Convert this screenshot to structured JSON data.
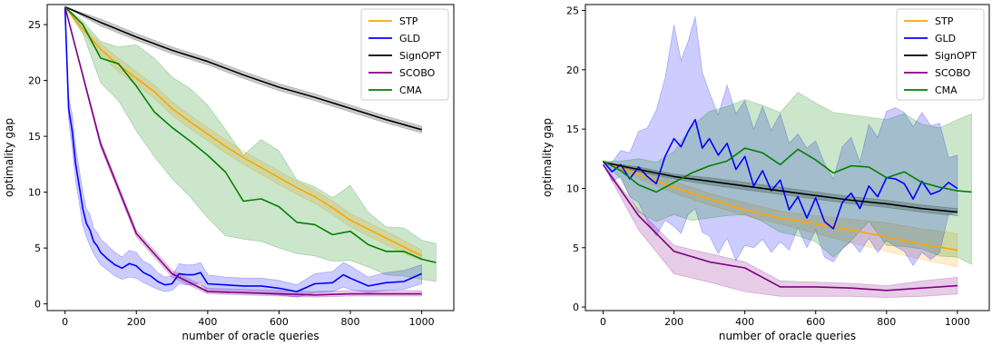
{
  "chart_data": [
    {
      "type": "line",
      "xlabel": "number of oracle queries",
      "ylabel": "optimality gap",
      "xlim": [
        -50,
        1090
      ],
      "ylim": [
        -0.6,
        26.8
      ],
      "xticks": [
        0,
        200,
        400,
        600,
        800,
        1000
      ],
      "yticks": [
        0,
        5,
        10,
        15,
        20,
        25
      ],
      "legend_position": "top-right",
      "grid": false,
      "series": [
        {
          "name": "STP",
          "color": "#ffa500",
          "x": [
            0,
            50,
            100,
            150,
            200,
            250,
            300,
            350,
            400,
            450,
            500,
            550,
            600,
            650,
            700,
            750,
            800,
            850,
            900,
            950,
            1000
          ],
          "y": [
            26.6,
            24.6,
            22.8,
            21.4,
            20.2,
            19.0,
            17.5,
            16.3,
            15.2,
            14.1,
            13.1,
            12.2,
            11.3,
            10.4,
            9.6,
            8.6,
            7.5,
            6.7,
            5.9,
            5.1,
            4.3
          ],
          "lower": [
            26.6,
            24.3,
            22.3,
            20.8,
            19.6,
            18.4,
            16.9,
            15.7,
            14.6,
            13.5,
            12.5,
            11.6,
            10.7,
            9.8,
            9.0,
            8.0,
            6.9,
            6.1,
            5.3,
            4.5,
            3.9
          ],
          "upper": [
            26.6,
            24.9,
            23.3,
            22.0,
            20.8,
            19.6,
            18.1,
            16.9,
            15.8,
            14.7,
            13.7,
            12.8,
            11.9,
            11.0,
            10.2,
            9.2,
            8.1,
            7.3,
            6.5,
            5.7,
            4.8
          ]
        },
        {
          "name": "GLD",
          "color": "#0000ff",
          "x": [
            0,
            10,
            20,
            30,
            40,
            50,
            60,
            70,
            80,
            90,
            100,
            120,
            140,
            160,
            180,
            200,
            220,
            240,
            260,
            280,
            300,
            320,
            340,
            360,
            380,
            400,
            450,
            500,
            550,
            600,
            650,
            700,
            750,
            780,
            800,
            850,
            900,
            950,
            1000
          ],
          "y": [
            26.6,
            17.5,
            15.5,
            12.5,
            10.5,
            8.5,
            7.2,
            6.6,
            5.6,
            5.2,
            4.6,
            4.0,
            3.5,
            3.2,
            3.6,
            3.4,
            2.8,
            2.5,
            2.0,
            1.7,
            1.8,
            2.7,
            2.6,
            2.6,
            2.8,
            1.8,
            1.7,
            1.6,
            1.6,
            1.4,
            1.1,
            1.8,
            1.9,
            2.6,
            2.3,
            1.6,
            1.9,
            2.0,
            2.7
          ],
          "lower": [
            26.6,
            16.5,
            14.0,
            11.0,
            9.0,
            7.0,
            6.0,
            5.2,
            4.5,
            4.0,
            3.5,
            3.0,
            2.5,
            2.2,
            2.4,
            2.3,
            1.9,
            1.6,
            1.3,
            1.1,
            1.2,
            1.8,
            1.7,
            1.7,
            1.9,
            1.1,
            1.0,
            1.0,
            0.9,
            0.8,
            0.6,
            1.0,
            1.1,
            1.5,
            1.3,
            1.0,
            1.2,
            1.3,
            1.8
          ],
          "upper": [
            26.6,
            18.5,
            17.0,
            14.0,
            12.0,
            10.0,
            8.5,
            8.0,
            6.8,
            6.4,
            5.8,
            5.2,
            4.6,
            4.2,
            4.8,
            4.6,
            3.8,
            3.5,
            2.8,
            2.4,
            2.5,
            3.6,
            3.5,
            3.5,
            3.7,
            2.6,
            2.4,
            2.3,
            2.3,
            2.1,
            1.7,
            2.7,
            2.9,
            3.7,
            3.4,
            2.4,
            2.8,
            3.0,
            3.5
          ]
        },
        {
          "name": "SignOPT",
          "color": "#000000",
          "x": [
            0,
            100,
            200,
            300,
            400,
            500,
            600,
            700,
            800,
            900,
            1000
          ],
          "y": [
            26.6,
            25.2,
            23.9,
            22.7,
            21.7,
            20.5,
            19.4,
            18.5,
            17.5,
            16.5,
            15.6
          ],
          "lower": [
            26.6,
            24.9,
            23.6,
            22.4,
            21.4,
            20.2,
            19.1,
            18.2,
            17.2,
            16.2,
            15.3
          ],
          "upper": [
            26.6,
            25.5,
            24.2,
            23.0,
            22.0,
            20.8,
            19.7,
            18.8,
            17.8,
            16.8,
            15.9
          ]
        },
        {
          "name": "SCOBO",
          "color": "#800080",
          "x": [
            0,
            100,
            200,
            300,
            400,
            500,
            600,
            700,
            800,
            900,
            1000
          ],
          "y": [
            26.6,
            14.3,
            6.3,
            2.7,
            1.1,
            1.0,
            0.9,
            0.8,
            0.9,
            0.9,
            0.9
          ],
          "lower": [
            26.6,
            14.0,
            6.0,
            2.4,
            0.9,
            0.8,
            0.7,
            0.6,
            0.7,
            0.7,
            0.7
          ],
          "upper": [
            26.6,
            14.6,
            6.6,
            3.0,
            1.4,
            1.3,
            1.2,
            1.1,
            1.2,
            1.2,
            1.2
          ]
        },
        {
          "name": "CMA",
          "color": "#008000",
          "x": [
            0,
            50,
            100,
            150,
            200,
            250,
            300,
            350,
            400,
            450,
            500,
            550,
            600,
            650,
            700,
            750,
            800,
            850,
            900,
            950,
            1000,
            1040
          ],
          "y": [
            26.6,
            25.0,
            22.0,
            21.5,
            19.5,
            17.2,
            15.8,
            14.6,
            13.3,
            11.8,
            9.2,
            9.4,
            8.7,
            7.3,
            7.1,
            6.2,
            6.5,
            5.3,
            4.7,
            4.7,
            4.0,
            3.7
          ],
          "lower": [
            26.6,
            24.2,
            19.8,
            18.2,
            15.5,
            13.2,
            11.2,
            9.6,
            7.7,
            6.1,
            5.8,
            5.6,
            5.0,
            4.5,
            4.3,
            3.8,
            3.9,
            3.3,
            2.6,
            2.5,
            2.2,
            2.0
          ],
          "upper": [
            26.6,
            25.3,
            23.5,
            23.0,
            23.2,
            22.0,
            20.3,
            19.3,
            17.8,
            15.6,
            13.3,
            14.7,
            13.7,
            11.1,
            10.5,
            9.5,
            10.6,
            8.2,
            6.9,
            6.8,
            5.7,
            5.4
          ]
        }
      ]
    },
    {
      "type": "line",
      "xlabel": "number of oracle queries",
      "ylabel": "optimality gap",
      "xlim": [
        -50,
        1090
      ],
      "ylim": [
        -0.3,
        25.5
      ],
      "xticks": [
        0,
        200,
        400,
        600,
        800,
        1000
      ],
      "yticks": [
        0,
        5,
        10,
        15,
        20,
        25
      ],
      "legend_position": "top-right",
      "grid": false,
      "series": [
        {
          "name": "STP",
          "color": "#ffa500",
          "x": [
            0,
            100,
            200,
            300,
            400,
            500,
            600,
            700,
            800,
            900,
            1000
          ],
          "y": [
            12.3,
            11.2,
            10.1,
            9.1,
            8.2,
            7.5,
            7.0,
            6.5,
            5.9,
            5.3,
            4.8
          ],
          "lower": [
            12.3,
            10.8,
            9.6,
            8.6,
            7.7,
            7.0,
            6.2,
            5.4,
            4.7,
            4.0,
            3.4
          ],
          "upper": [
            12.3,
            11.6,
            10.6,
            9.6,
            8.8,
            8.1,
            7.7,
            7.4,
            7.1,
            6.6,
            6.2
          ]
        },
        {
          "name": "GLD",
          "color": "#0000ff",
          "x": [
            0,
            25,
            50,
            75,
            100,
            125,
            150,
            175,
            200,
            220,
            240,
            260,
            280,
            300,
            325,
            350,
            375,
            400,
            425,
            450,
            475,
            500,
            525,
            550,
            575,
            600,
            625,
            650,
            675,
            700,
            725,
            750,
            775,
            800,
            825,
            850,
            875,
            900,
            925,
            950,
            975,
            1000
          ],
          "y": [
            12.3,
            11.4,
            12.0,
            10.8,
            11.8,
            11.0,
            10.4,
            12.7,
            14.2,
            13.5,
            14.8,
            15.8,
            13.4,
            14.2,
            12.8,
            13.8,
            11.6,
            12.7,
            10.2,
            11.5,
            9.8,
            10.7,
            8.2,
            9.3,
            7.5,
            9.2,
            7.2,
            6.6,
            8.8,
            9.6,
            8.3,
            10.2,
            9.3,
            10.9,
            10.8,
            10.4,
            9.1,
            10.6,
            9.5,
            9.8,
            10.5,
            10.0
          ],
          "lower": [
            12.3,
            10.6,
            11.0,
            9.3,
            8.8,
            7.2,
            6.0,
            7.3,
            6.8,
            6.2,
            7.8,
            8.3,
            6.3,
            6.0,
            4.5,
            5.8,
            3.9,
            5.2,
            5.0,
            5.7,
            4.6,
            5.5,
            4.8,
            6.7,
            5.0,
            6.5,
            4.2,
            3.8,
            4.9,
            5.5,
            4.6,
            5.8,
            4.6,
            5.6,
            5.1,
            4.7,
            3.5,
            4.6,
            4.0,
            4.6,
            7.8,
            8.0
          ],
          "upper": [
            12.3,
            12.2,
            13.2,
            13.0,
            14.8,
            15.1,
            16.6,
            19.3,
            23.8,
            20.8,
            22.4,
            24.5,
            19.8,
            18.1,
            16.2,
            18.7,
            16.3,
            17.4,
            15.0,
            16.9,
            14.9,
            16.3,
            13.8,
            14.6,
            13.4,
            14.0,
            12.1,
            10.8,
            13.5,
            14.3,
            12.2,
            15.4,
            14.3,
            16.5,
            16.8,
            16.4,
            15.2,
            16.4,
            15.3,
            15.5,
            12.6,
            12.8
          ]
        },
        {
          "name": "SignOPT",
          "color": "#000000",
          "x": [
            0,
            100,
            200,
            300,
            400,
            500,
            600,
            700,
            800,
            900,
            1000
          ],
          "y": [
            12.2,
            11.6,
            11.0,
            10.6,
            10.2,
            9.8,
            9.4,
            9.0,
            8.7,
            8.3,
            8.0
          ],
          "lower": [
            12.2,
            11.4,
            10.8,
            10.3,
            9.9,
            9.5,
            9.1,
            8.7,
            8.4,
            8.0,
            7.7
          ],
          "upper": [
            12.2,
            11.8,
            11.2,
            10.9,
            10.5,
            10.1,
            9.7,
            9.3,
            9.0,
            8.6,
            8.3
          ]
        },
        {
          "name": "SCOBO",
          "color": "#800080",
          "x": [
            0,
            100,
            200,
            300,
            400,
            500,
            600,
            700,
            800,
            900,
            1000
          ],
          "y": [
            12.0,
            7.7,
            4.7,
            3.8,
            3.3,
            1.7,
            1.7,
            1.6,
            1.4,
            1.6,
            1.8
          ],
          "lower": [
            12.0,
            6.5,
            2.8,
            2.1,
            1.3,
            0.9,
            0.9,
            0.9,
            0.8,
            0.9,
            1.1
          ],
          "upper": [
            12.0,
            8.2,
            5.2,
            4.5,
            3.8,
            2.2,
            2.1,
            2.0,
            1.8,
            2.2,
            2.5
          ]
        },
        {
          "name": "CMA",
          "color": "#008000",
          "x": [
            0,
            50,
            100,
            150,
            200,
            250,
            300,
            350,
            400,
            450,
            500,
            550,
            600,
            650,
            700,
            750,
            800,
            850,
            900,
            950,
            1000,
            1040
          ],
          "y": [
            12.3,
            11.5,
            10.3,
            9.7,
            10.5,
            11.3,
            11.9,
            12.3,
            13.4,
            13.0,
            12.0,
            13.3,
            12.4,
            11.3,
            11.9,
            11.8,
            10.9,
            11.4,
            10.5,
            10.1,
            9.8,
            9.7
          ],
          "lower": [
            12.3,
            10.8,
            8.0,
            7.2,
            7.8,
            7.3,
            7.5,
            7.7,
            7.8,
            7.2,
            6.3,
            6.0,
            5.5,
            4.2,
            5.6,
            7.2,
            5.2,
            5.1,
            4.9,
            4.3,
            4.2,
            3.6
          ],
          "upper": [
            12.3,
            12.3,
            12.5,
            12.2,
            13.1,
            15.2,
            16.5,
            16.9,
            17.5,
            17.0,
            16.4,
            18.1,
            17.2,
            16.4,
            16.2,
            16.0,
            15.8,
            16.3,
            15.4,
            15.1,
            15.8,
            16.3
          ]
        }
      ]
    }
  ]
}
